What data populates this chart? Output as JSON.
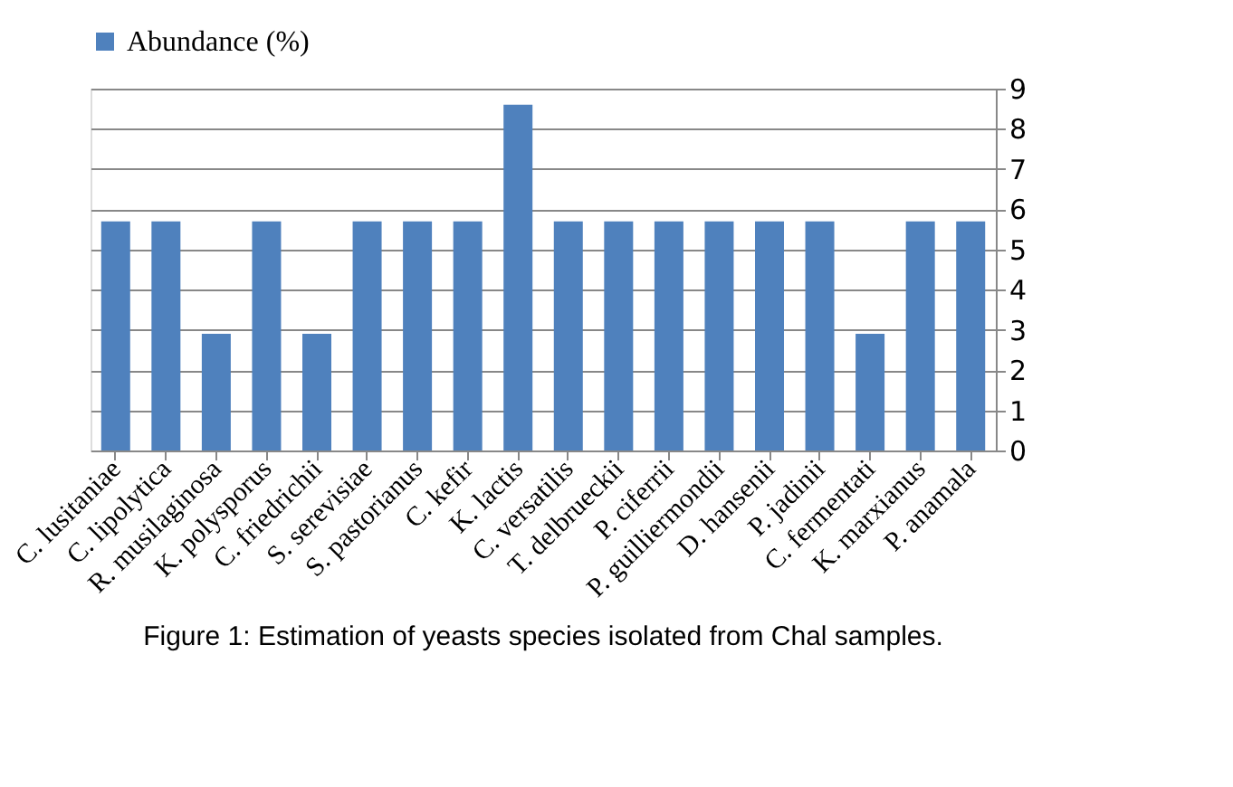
{
  "chart_data": {
    "type": "bar",
    "categories": [
      "C. lusitaniae",
      "C. lipolytica",
      "R. musilaginosa",
      "K. polysporus",
      "C. friedrichii",
      "S. serevisiae",
      "S. pastorianus",
      "C. kefir",
      "K. lactis",
      "C. versatilis",
      "T. delbrueckii",
      "P. ciferrii",
      "P. guilliermondii",
      "D. hansenii",
      "P. jadinii",
      "C. fermentati",
      "K. marxianus",
      "P. anamala"
    ],
    "series": [
      {
        "name": "Abundance (%)",
        "color": "#4f81bd",
        "values": [
          5.7,
          5.7,
          2.9,
          5.7,
          2.9,
          5.7,
          5.7,
          5.7,
          8.6,
          5.7,
          5.7,
          5.7,
          5.7,
          5.7,
          5.7,
          2.9,
          5.7,
          5.7
        ]
      }
    ],
    "ylim": [
      0,
      9
    ],
    "yticks": [
      0,
      1,
      2,
      3,
      4,
      5,
      6,
      7,
      8,
      9
    ],
    "grid": "y",
    "legend": "top",
    "annotations": [
      "Figure 1: Estimation of yeasts species isolated from Chal samples."
    ]
  }
}
